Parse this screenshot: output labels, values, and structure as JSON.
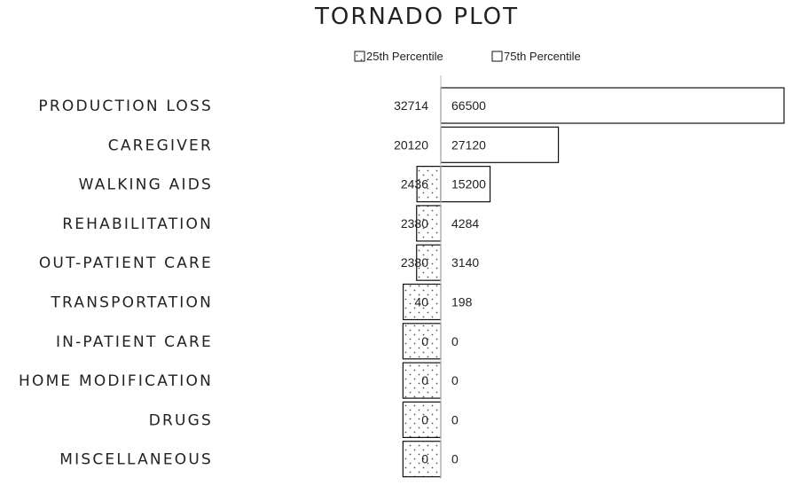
{
  "chart_data": {
    "type": "bar",
    "orientation": "horizontal",
    "variant": "tornado",
    "title": "TORNADO PLOT",
    "categories": [
      "PRODUCTION LOSS",
      "CAREGIVER",
      "WALKING AIDS",
      "REHABILITATION",
      "OUT-PATIENT CARE",
      "TRANSPORTATION",
      "IN-PATIENT CARE",
      "HOME MODIFICATION",
      "DRUGS",
      "MISCELLANEOUS"
    ],
    "series": [
      {
        "name": "25th Percentile",
        "values": [
          32714,
          20120,
          2436,
          2380,
          2380,
          40,
          0,
          0,
          0,
          0
        ],
        "fill": "dotted"
      },
      {
        "name": "75th Percentile",
        "values": [
          66500,
          27120,
          15200,
          4284,
          3140,
          198,
          0,
          0,
          0,
          0
        ],
        "fill": "white"
      }
    ],
    "base_value": 6600,
    "legend": {
      "position": "top",
      "entries": [
        "25th Percentile",
        "75th Percentile"
      ]
    },
    "colors": {
      "bar_stroke": "#111111",
      "dot": "#555555",
      "center_line": "#bbbbbb"
    },
    "grid": false
  }
}
